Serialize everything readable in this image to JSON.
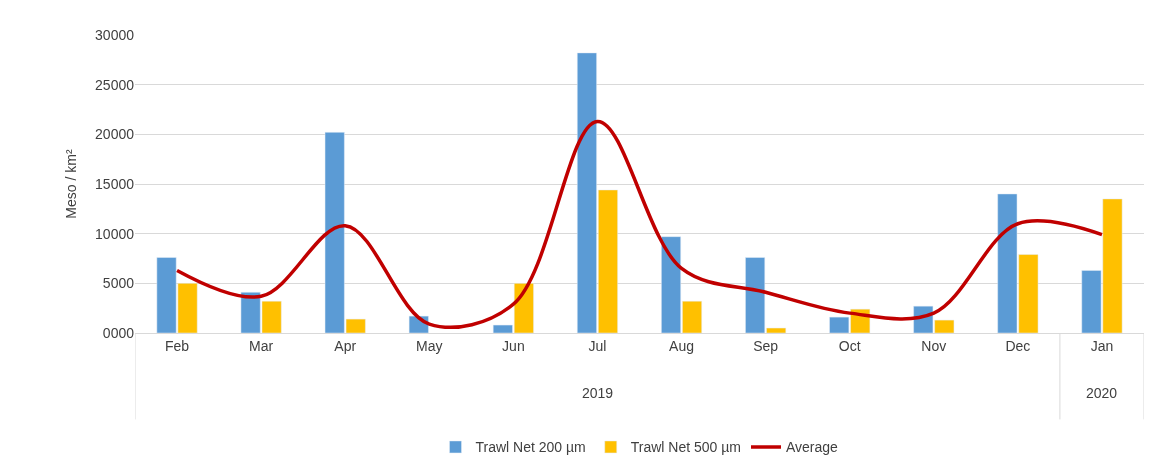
{
  "chart_data": {
    "type": "bar",
    "ylabel": "Meso / km²",
    "categories": [
      "Feb",
      "Mar",
      "Apr",
      "May",
      "Jun",
      "Jul",
      "Aug",
      "Sep",
      "Oct",
      "Nov",
      "Dec",
      "Jan"
    ],
    "series": [
      {
        "name": "Trawl Net 200 µm",
        "color": "#5b9bd5",
        "values": [
          7600,
          4100,
          20200,
          1700,
          800,
          28200,
          9700,
          7600,
          1600,
          2700,
          14000,
          6300
        ]
      },
      {
        "name": "Trawl Net 500 µm",
        "color": "#ffc000",
        "values": [
          5000,
          3200,
          1400,
          null,
          5000,
          14400,
          3200,
          500,
          2400,
          1300,
          7900,
          13500
        ]
      },
      {
        "name": "Average",
        "color": "#c00000",
        "type": "line",
        "values": [
          6300,
          3700,
          10800,
          900,
          2900,
          21300,
          6500,
          4100,
          2000,
          2000,
          11000,
          9900
        ]
      }
    ],
    "annotations": [
      "2019",
      "2020"
    ],
    "ylim": [
      0,
      30000
    ],
    "yticks": [
      {
        "value": 0,
        "label": "0000"
      },
      5000,
      10000,
      15000,
      20000,
      25000,
      30000
    ],
    "grid": "y",
    "legend": "bottom",
    "marker": "none",
    "line_style": "solid"
  }
}
